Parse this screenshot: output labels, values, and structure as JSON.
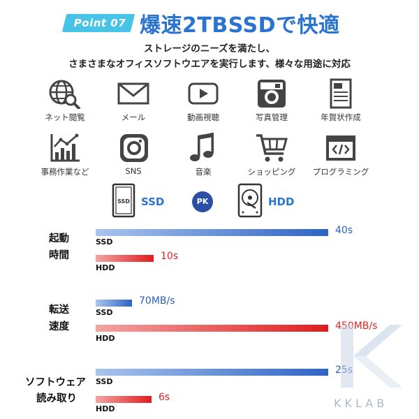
{
  "header": {
    "badge": "Point 07",
    "title": "爆速2TBSSDで快適",
    "subtitle_line1": "ストレージのニーズを満たし、",
    "subtitle_line2": "さまさまなオフィスソフトウエアを実行します、様々な用途に対応"
  },
  "uses": [
    {
      "label": "ネット閲覧",
      "icon": "globe-search-icon"
    },
    {
      "label": "メール",
      "icon": "mail-icon"
    },
    {
      "label": "動画視聴",
      "icon": "video-play-icon"
    },
    {
      "label": "写真管理",
      "icon": "camera-icon"
    },
    {
      "label": "年賀状作成",
      "icon": "postcard-icon"
    },
    {
      "label": "事務作業など",
      "icon": "chart-icon"
    },
    {
      "label": "SNS",
      "icon": "instagram-icon"
    },
    {
      "label": "音楽",
      "icon": "music-note-icon"
    },
    {
      "label": "ショッピング",
      "icon": "shopping-cart-icon"
    },
    {
      "label": "プログラミング",
      "icon": "code-window-icon"
    }
  ],
  "legend": {
    "ssd": "SSD",
    "pk": "PK",
    "hdd": "HDD"
  },
  "chart_data": {
    "type": "bar",
    "orientation": "horizontal",
    "series_labels": {
      "ssd": "SSD",
      "hdd": "HDD"
    },
    "colors": {
      "ssd": "#2f63c4",
      "hdd": "#e01d1d"
    },
    "groups": [
      {
        "label_line1": "起動",
        "label_line2": "時間",
        "ssd": {
          "value": 40,
          "label": "40s"
        },
        "hdd": {
          "value": 10,
          "label": "10s"
        }
      },
      {
        "label_line1": "転送",
        "label_line2": "速度",
        "ssd": {
          "value": 70,
          "label": "70MB/s"
        },
        "hdd": {
          "value": 450,
          "label": "450MB/s"
        }
      },
      {
        "label_line1": "ソフトウェア",
        "label_line2": "読み取り",
        "ssd": {
          "value": 25,
          "label": "25s"
        },
        "hdd": {
          "value": 6,
          "label": "6s"
        }
      }
    ]
  },
  "watermark": {
    "text": "KKLAB"
  }
}
